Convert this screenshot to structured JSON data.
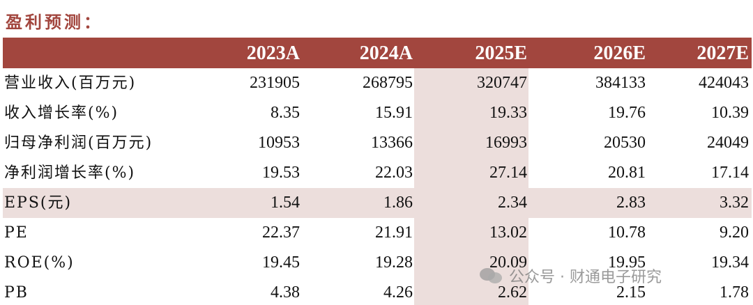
{
  "title": "盈利预测：",
  "table": {
    "headers": [
      "2023A",
      "2024A",
      "2025E",
      "2026E",
      "2027E"
    ],
    "rows": [
      {
        "label": "营业收入(百万元)",
        "values": [
          "231905",
          "268795",
          "320747",
          "384133",
          "424043"
        ]
      },
      {
        "label": "收入增长率(%)",
        "values": [
          "8.35",
          "15.91",
          "19.33",
          "19.76",
          "10.39"
        ]
      },
      {
        "label": "归母净利润(百万元)",
        "values": [
          "10953",
          "13366",
          "16993",
          "20530",
          "24049"
        ]
      },
      {
        "label": "净利润增长率(%)",
        "values": [
          "19.53",
          "22.03",
          "27.14",
          "20.81",
          "17.14"
        ]
      },
      {
        "label": "EPS(元)",
        "values": [
          "1.54",
          "1.86",
          "2.34",
          "2.83",
          "3.32"
        ]
      },
      {
        "label": "PE",
        "values": [
          "22.37",
          "21.91",
          "13.02",
          "10.78",
          "9.20"
        ]
      },
      {
        "label": "ROE(%)",
        "values": [
          "19.45",
          "19.28",
          "20.09",
          "19.95",
          "19.34"
        ]
      },
      {
        "label": "PB",
        "values": [
          "4.38",
          "4.26",
          "2.62",
          "2.15",
          "1.78"
        ]
      }
    ]
  },
  "watermark": {
    "text": "公众号 · 财通电子研究",
    "icon": "wechat-icon"
  },
  "colors": {
    "header_bg": "#a2463e",
    "shade": "#ecdedc",
    "title": "#a2463e"
  }
}
